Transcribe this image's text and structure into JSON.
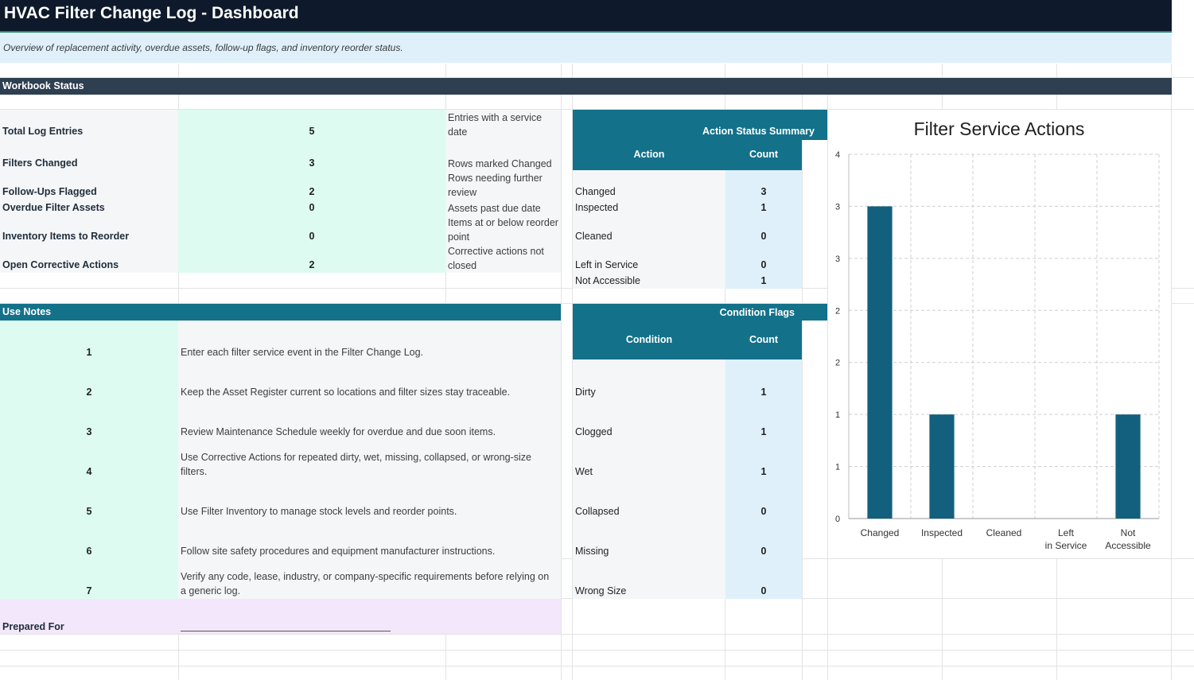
{
  "title": "HVAC Filter Change Log - Dashboard",
  "subtitle": "Overview of replacement activity, overdue assets, follow-up flags, and inventory reorder status.",
  "workbook_status": {
    "header": "Workbook Status",
    "rows": [
      {
        "label": "Total Log Entries",
        "value": "5",
        "desc": "Entries with a service date"
      },
      {
        "label": "Filters Changed",
        "value": "3",
        "desc": "Rows marked Changed"
      },
      {
        "label": "Follow-Ups Flagged",
        "value": "2",
        "desc": "Rows needing further review"
      },
      {
        "label": "Overdue Filter Assets",
        "value": "0",
        "desc": "Assets past due date"
      },
      {
        "label": "Inventory Items to Reorder",
        "value": "0",
        "desc": "Items at or below reorder point"
      },
      {
        "label": "Open Corrective Actions",
        "value": "2",
        "desc": "Corrective actions not closed"
      }
    ]
  },
  "action_summary": {
    "title": "Action Status Summary",
    "col_action": "Action",
    "col_count": "Count",
    "rows": [
      {
        "name": "Changed",
        "count": "3"
      },
      {
        "name": "Inspected",
        "count": "1"
      },
      {
        "name": "Cleaned",
        "count": "0"
      },
      {
        "name": "Left in Service",
        "count": "0"
      },
      {
        "name": "Not Accessible",
        "count": "1"
      }
    ]
  },
  "use_notes": {
    "header": "Use Notes",
    "items": [
      {
        "num": "1",
        "text": "Enter each filter service event in the Filter Change Log."
      },
      {
        "num": "2",
        "text": "Keep the Asset Register current so locations and filter sizes stay traceable."
      },
      {
        "num": "3",
        "text": "Review Maintenance Schedule weekly for overdue and due soon items."
      },
      {
        "num": "4",
        "text": "Use Corrective Actions for repeated dirty, wet, missing, collapsed, or wrong-size filters."
      },
      {
        "num": "5",
        "text": "Use Filter Inventory to manage stock levels and reorder points."
      },
      {
        "num": "6",
        "text": "Follow site safety procedures and equipment manufacturer instructions."
      },
      {
        "num": "7",
        "text": "Verify any code, lease, industry, or company-specific requirements before relying on a generic log."
      }
    ]
  },
  "condition_flags": {
    "title": "Condition Flags",
    "col_condition": "Condition",
    "col_count": "Count",
    "rows": [
      {
        "name": "Dirty",
        "count": "1"
      },
      {
        "name": "Clogged",
        "count": "1"
      },
      {
        "name": "Wet",
        "count": "1"
      },
      {
        "name": "Collapsed",
        "count": "0"
      },
      {
        "name": "Missing",
        "count": "0"
      },
      {
        "name": "Wrong Size",
        "count": "0"
      }
    ]
  },
  "prepared_for": {
    "label": "Prepared For"
  },
  "colors": {
    "banner": "#0e1a2b",
    "teal": "#13718a",
    "slate": "#2e3f51",
    "mint": "#ddfbf1",
    "ice": "#dff0fb",
    "lavender": "#f3e7fb",
    "bar": "#135f7e"
  },
  "chart_data": {
    "type": "bar",
    "title": "Filter Service Actions",
    "categories": [
      "Changed",
      "Inspected",
      "Cleaned",
      "Left in Service",
      "Not Accessible"
    ],
    "values": [
      3,
      1,
      0,
      0,
      1
    ],
    "ylim": [
      0,
      3.5
    ],
    "y_tick_values": [
      0,
      0.5,
      1,
      1.5,
      2,
      2.5,
      3,
      3.5
    ],
    "y_tick_labels": [
      "0",
      "1",
      "1",
      "2",
      "2",
      "3",
      "3",
      "4"
    ],
    "grid": true,
    "legend": "none"
  }
}
